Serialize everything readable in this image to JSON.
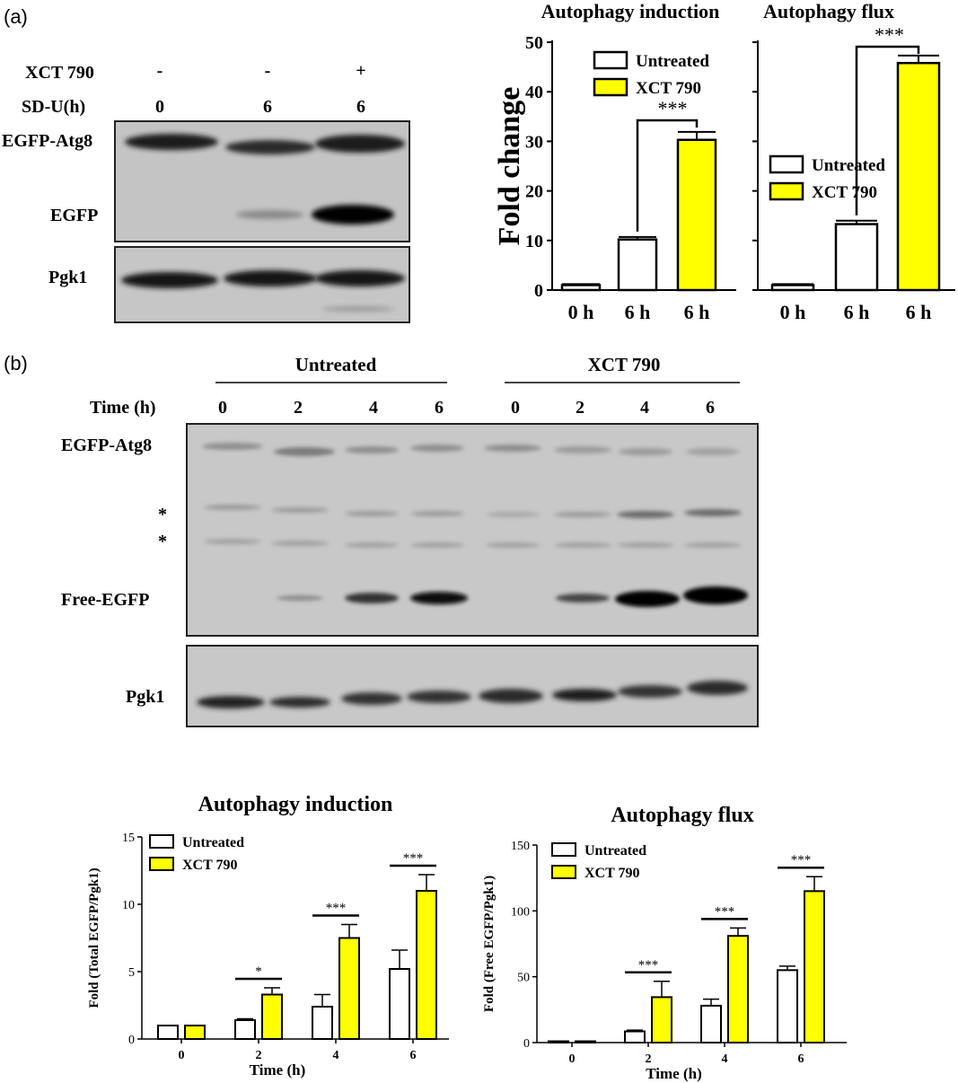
{
  "figure": {
    "panel_a_letter": "(a)",
    "panel_b_letter": "(b)"
  },
  "panel_a_blot": {
    "condition_rows": [
      {
        "label": "XCT 790",
        "values": [
          "-",
          "-",
          "+"
        ]
      },
      {
        "label": "SD-U(h)",
        "values": [
          "0",
          "6",
          "6"
        ]
      }
    ],
    "band_labels": [
      "EGFP-Atg8",
      "EGFP",
      "Pgk1"
    ]
  },
  "panel_b_blot": {
    "group_headers": [
      "Untreated",
      "XCT 790"
    ],
    "time_label": "Time (h)",
    "lanes": [
      "0",
      "2",
      "4",
      "6",
      "0",
      "2",
      "4",
      "6"
    ],
    "band_labels": [
      "EGFP-Atg8",
      "*",
      "*",
      "Free-EGFP",
      "Pgk1"
    ]
  },
  "chart_data": [
    {
      "type": "bar",
      "title": "Autophagy induction",
      "ylabel": "Fold change",
      "xlabel": "",
      "ylim": [
        0,
        50
      ],
      "yticks": [
        0,
        10,
        20,
        30,
        40,
        50
      ],
      "categories": [
        "0 h",
        "6 h",
        "6 h"
      ],
      "values": [
        1.0,
        10.2,
        30.3
      ],
      "errors": [
        0.2,
        0.5,
        1.6
      ],
      "bar_colors": [
        "#ffffff",
        "#ffffff",
        "#ffff00"
      ],
      "legend": [
        {
          "name": "Untreated",
          "color": "#ffffff"
        },
        {
          "name": "XCT 790",
          "color": "#ffff00"
        }
      ],
      "legend_position": "top-left",
      "significance": [
        {
          "from": 1,
          "to": 2,
          "label": "***"
        }
      ]
    },
    {
      "type": "bar",
      "title": "Autophagy flux",
      "ylabel": "",
      "xlabel": "",
      "ylim": [
        0,
        50
      ],
      "categories": [
        "0 h",
        "6 h",
        "6 h"
      ],
      "values": [
        1.0,
        13.3,
        45.8
      ],
      "errors": [
        0.2,
        0.7,
        1.5
      ],
      "bar_colors": [
        "#ffffff",
        "#ffffff",
        "#ffff00"
      ],
      "legend": [
        {
          "name": "Untreated",
          "color": "#ffffff"
        },
        {
          "name": "XCT 790",
          "color": "#ffff00"
        }
      ],
      "legend_position": "middle-left",
      "significance": [
        {
          "from": 1,
          "to": 2,
          "label": "***"
        }
      ]
    },
    {
      "type": "bar",
      "title": "Autophagy induction",
      "ylabel": "Fold (Total EGFP/Pgk1)",
      "xlabel": "Time (h)",
      "ylim": [
        0,
        15
      ],
      "yticks": [
        0,
        5,
        10,
        15
      ],
      "categories": [
        "0",
        "2",
        "4",
        "6"
      ],
      "series": [
        {
          "name": "Untreated",
          "color": "#ffffff",
          "values": [
            1.0,
            1.4,
            2.4,
            5.2
          ],
          "errors": [
            0.0,
            0.1,
            0.9,
            1.4
          ]
        },
        {
          "name": "XCT 790",
          "color": "#ffff00",
          "values": [
            1.0,
            3.3,
            7.5,
            11.0
          ],
          "errors": [
            0.0,
            0.5,
            1.0,
            1.2
          ]
        }
      ],
      "legend_position": "top-left",
      "significance": [
        {
          "category": 1,
          "label": "*"
        },
        {
          "category": 2,
          "label": "***"
        },
        {
          "category": 3,
          "label": "***"
        }
      ]
    },
    {
      "type": "bar",
      "title": "Autophagy flux",
      "ylabel": "Fold (Free EGFP/Pgk1)",
      "xlabel": "Time (h)",
      "ylim": [
        0,
        150
      ],
      "yticks": [
        0,
        50,
        100,
        150
      ],
      "categories": [
        "0",
        "2",
        "4",
        "6"
      ],
      "series": [
        {
          "name": "Untreated",
          "color": "#ffffff",
          "values": [
            1.0,
            8.5,
            28.0,
            55.0
          ],
          "errors": [
            0.0,
            1.0,
            5.0,
            3.0
          ]
        },
        {
          "name": "XCT 790",
          "color": "#ffff00",
          "values": [
            1.0,
            34.5,
            81.0,
            115.0
          ],
          "errors": [
            0.0,
            12.0,
            6.0,
            11.0
          ]
        }
      ],
      "legend_position": "top-left",
      "significance": [
        {
          "category": 1,
          "label": "***"
        },
        {
          "category": 2,
          "label": "***"
        },
        {
          "category": 3,
          "label": "***"
        }
      ]
    }
  ]
}
